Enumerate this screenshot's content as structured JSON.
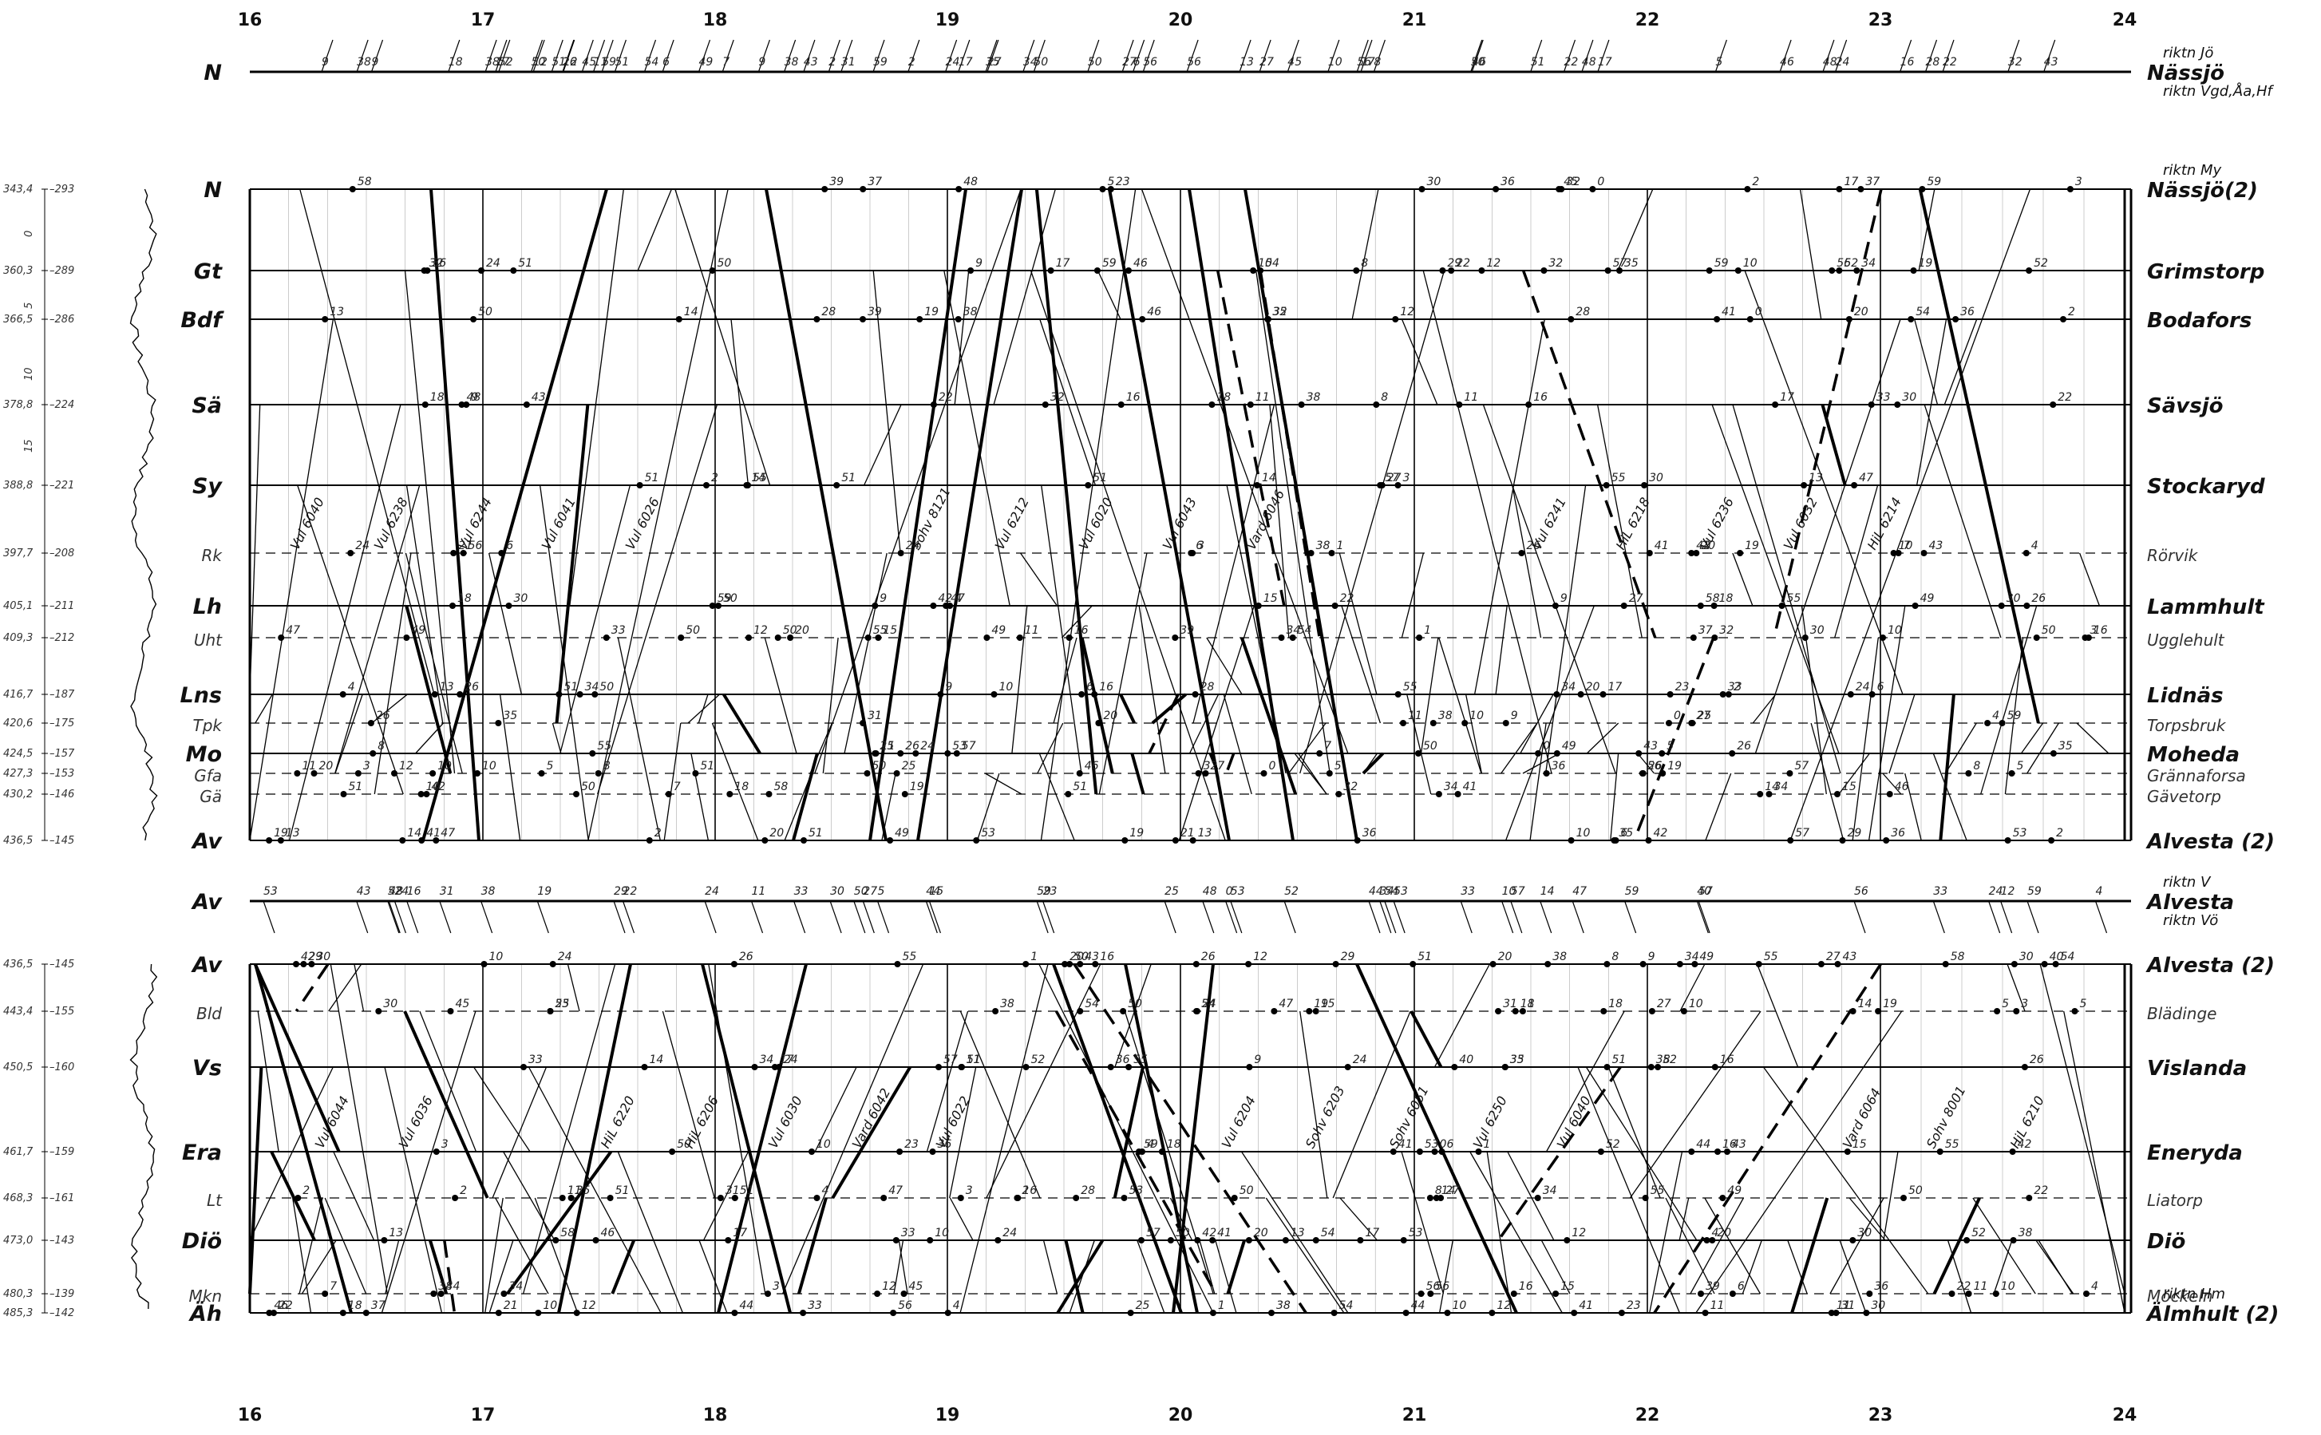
{
  "hours": [
    "16",
    "17",
    "18",
    "19",
    "20",
    "21",
    "22",
    "23",
    "24"
  ],
  "upper_sections": [
    {
      "stations": [
        {
          "abbr": "N",
          "name": "Nässjö(2)",
          "km": "343,4",
          "grad": "293",
          "dir": "riktn My",
          "major": true,
          "minor": false
        },
        {
          "abbr": "Gt",
          "name": "Grimstorp",
          "km": "360,3",
          "grad": "289",
          "major": true,
          "minor": false
        },
        {
          "abbr": "Bdf",
          "name": "Bodafors",
          "km": "366,5",
          "grad": "286",
          "major": true,
          "minor": false
        },
        {
          "abbr": "Sä",
          "name": "Sävsjö",
          "km": "378,8",
          "grad": "224",
          "major": true,
          "minor": false
        },
        {
          "abbr": "Sy",
          "name": "Stockaryd",
          "km": "388,8",
          "grad": "221",
          "major": true,
          "minor": false
        },
        {
          "abbr": "Rk",
          "name": "Rörvik",
          "km": "397,7",
          "grad": "208",
          "major": false,
          "minor": true
        },
        {
          "abbr": "Lh",
          "name": "Lammhult",
          "km": "405,1",
          "grad": "211",
          "major": true,
          "minor": false
        },
        {
          "abbr": "Uht",
          "name": "Ugglehult",
          "km": "409,3",
          "grad": "212",
          "major": false,
          "minor": true
        },
        {
          "abbr": "Lns",
          "name": "Lidnäs",
          "km": "416,7",
          "grad": "187",
          "major": true,
          "minor": false
        },
        {
          "abbr": "Tpk",
          "name": "Torpsbruk",
          "km": "420,6",
          "grad": "175",
          "major": false,
          "minor": true
        },
        {
          "abbr": "Mo",
          "name": "Moheda",
          "km": "424,5",
          "grad": "157",
          "major": true,
          "minor": false
        },
        {
          "abbr": "Gfa",
          "name": "Grännaforsa",
          "km": "427,3",
          "grad": "153",
          "major": false,
          "minor": true
        },
        {
          "abbr": "Gä",
          "name": "Gävetorp",
          "km": "430,2",
          "grad": "146",
          "major": false,
          "minor": true
        },
        {
          "abbr": "Av",
          "name": "Alvesta (2)",
          "km": "436,5",
          "grad": "145",
          "major": true,
          "minor": false
        }
      ]
    },
    {
      "stations": [
        {
          "abbr": "Av",
          "name": "Alvesta (2)",
          "km": "436,5",
          "grad": "145",
          "major": true,
          "minor": false
        },
        {
          "abbr": "Bld",
          "name": "Blädinge",
          "km": "443,4",
          "grad": "155",
          "major": false,
          "minor": true
        },
        {
          "abbr": "Vs",
          "name": "Vislanda",
          "km": "450,5",
          "grad": "160",
          "major": true,
          "minor": false
        },
        {
          "abbr": "Era",
          "name": "Eneryda",
          "km": "461,7",
          "grad": "159",
          "major": true,
          "minor": false
        },
        {
          "abbr": "Lt",
          "name": "Liatorp",
          "km": "468,3",
          "grad": "161",
          "major": false,
          "minor": true
        },
        {
          "abbr": "Diö",
          "name": "Diö",
          "km": "473,0",
          "grad": "143",
          "major": true,
          "minor": false
        },
        {
          "abbr": "Mkn",
          "name": "Möckeln",
          "km": "480,3",
          "grad": "139",
          "major": false,
          "minor": true
        },
        {
          "abbr": "Äh",
          "name": "Älmhult (2)",
          "km": "485,3",
          "grad": "142",
          "dir": "riktn Hm",
          "major": true,
          "minor": false
        }
      ]
    }
  ],
  "branch_top": {
    "abbr": "N",
    "name": "Nässjö",
    "dir_top": "riktn Jö",
    "dir_bottom": "riktn Vgd,Åa,Hf"
  },
  "branch_mid": {
    "abbr": "Av",
    "name": "Alvesta",
    "dir_top": "riktn V",
    "dir_bottom": "riktn Vö"
  },
  "profile_scale": [
    "0",
    "5",
    "10",
    "15"
  ],
  "train_labels": [
    "Vul 6040",
    "HiL 6220",
    "Sohv 8121",
    "Vul 6204",
    "Vul 6241",
    "Vard 6064",
    "Vul 6238",
    "HiL 6206",
    "Vul 6212",
    "Sohv 6203",
    "HiL 6218",
    "Sohv 8001",
    "Vul 6244",
    "Vul 6030",
    "Vul 6020",
    "Sohv 6051",
    "Vul 6236",
    "HiL 6210",
    "Vul 6041",
    "Vard 6042",
    "Vul 6043",
    "Vul 6250",
    "Vul 6032",
    "Vul 6044",
    "Vul 6026",
    "Vul 6022",
    "Vard 6046",
    "Vul 6040",
    "HiL 6214",
    "Vul 6036"
  ],
  "minute_marks": [
    "8",
    "15",
    "27",
    "41",
    "47",
    "55",
    "3",
    "19",
    "31",
    "45",
    "54",
    "4",
    "14",
    "22",
    "39",
    "50",
    "18",
    "25",
    "37",
    "43",
    "48",
    "58",
    "6",
    "12",
    "23",
    "29",
    "34",
    "40",
    "57",
    "2",
    "11",
    "16",
    "26",
    "32",
    "44",
    "52",
    "9",
    "21",
    "36",
    "46",
    "53",
    "1",
    "7",
    "13",
    "28",
    "35",
    "42",
    "49",
    "56",
    "59",
    "5",
    "10",
    "17",
    "24",
    "30",
    "33",
    "38",
    "51",
    "20",
    "0"
  ]
}
